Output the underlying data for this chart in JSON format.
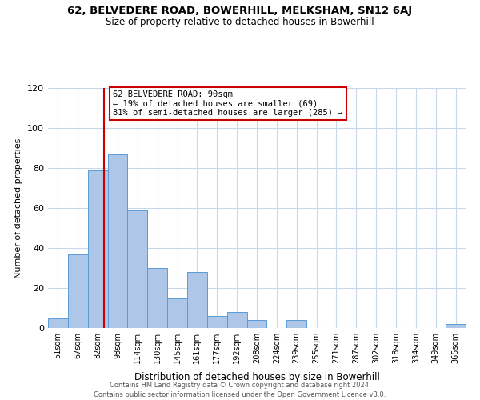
{
  "title1": "62, BELVEDERE ROAD, BOWERHILL, MELKSHAM, SN12 6AJ",
  "title2": "Size of property relative to detached houses in Bowerhill",
  "xlabel": "Distribution of detached houses by size in Bowerhill",
  "ylabel": "Number of detached properties",
  "bar_labels": [
    "51sqm",
    "67sqm",
    "82sqm",
    "98sqm",
    "114sqm",
    "130sqm",
    "145sqm",
    "161sqm",
    "177sqm",
    "192sqm",
    "208sqm",
    "224sqm",
    "239sqm",
    "255sqm",
    "271sqm",
    "287sqm",
    "302sqm",
    "318sqm",
    "334sqm",
    "349sqm",
    "365sqm"
  ],
  "bar_heights": [
    5,
    37,
    79,
    87,
    59,
    30,
    15,
    28,
    6,
    8,
    4,
    0,
    4,
    0,
    0,
    0,
    0,
    0,
    0,
    0,
    2
  ],
  "bar_color": "#aec6e8",
  "bar_edge_color": "#5b9bd5",
  "vline_color": "#cc0000",
  "vline_x": 2.3,
  "annotation_title": "62 BELVEDERE ROAD: 90sqm",
  "annotation_line1": "← 19% of detached houses are smaller (69)",
  "annotation_line2": "81% of semi-detached houses are larger (285) →",
  "annotation_box_color": "#ffffff",
  "annotation_box_edge": "#cc0000",
  "ylim": [
    0,
    120
  ],
  "yticks": [
    0,
    20,
    40,
    60,
    80,
    100,
    120
  ],
  "grid_color": "#c8d8ea",
  "footer1": "Contains HM Land Registry data © Crown copyright and database right 2024.",
  "footer2": "Contains public sector information licensed under the Open Government Licence v3.0."
}
